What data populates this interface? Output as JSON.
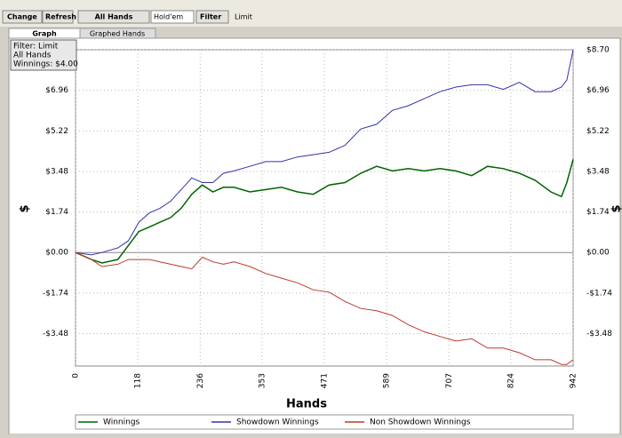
{
  "toolbar": {
    "buttons": [
      "Change",
      "Refresh",
      "All Hands"
    ],
    "game": "Hold'em",
    "filter": "Filter",
    "mode": "Limit"
  },
  "tabs": [
    "Graph",
    "Graphed Hands"
  ],
  "filter_box": [
    "Filter: Limit",
    "All Hands",
    "Winnings: $4.00"
  ],
  "chart_data": {
    "type": "line",
    "xlabel": "Hands",
    "ylabel": "$",
    "x": [
      0,
      30,
      50,
      80,
      100,
      120,
      140,
      160,
      180,
      200,
      220,
      240,
      260,
      280,
      300,
      330,
      360,
      390,
      420,
      450,
      480,
      510,
      540,
      570,
      600,
      630,
      660,
      690,
      720,
      750,
      780,
      810,
      840,
      870,
      900,
      920,
      930,
      942
    ],
    "series": [
      {
        "name": "Winnings",
        "color": "#006400",
        "values": [
          0,
          -0.3,
          -0.45,
          -0.3,
          0.3,
          0.9,
          1.1,
          1.3,
          1.5,
          1.9,
          2.5,
          2.9,
          2.6,
          2.8,
          2.8,
          2.6,
          2.7,
          2.8,
          2.6,
          2.5,
          2.9,
          3.0,
          3.4,
          3.7,
          3.5,
          3.6,
          3.5,
          3.6,
          3.5,
          3.3,
          3.7,
          3.6,
          3.4,
          3.1,
          2.6,
          2.4,
          3.0,
          4.0
        ]
      },
      {
        "name": "Showdown Winnings",
        "color": "#3333aa",
        "values": [
          0,
          -0.1,
          0,
          0.2,
          0.5,
          1.3,
          1.7,
          1.9,
          2.2,
          2.7,
          3.2,
          3.0,
          3.0,
          3.4,
          3.5,
          3.7,
          3.9,
          3.9,
          4.1,
          4.2,
          4.3,
          4.6,
          5.3,
          5.5,
          6.1,
          6.3,
          6.6,
          6.9,
          7.1,
          7.2,
          7.2,
          7.0,
          7.3,
          6.9,
          6.9,
          7.1,
          7.4,
          8.7
        ]
      },
      {
        "name": "Non Showdown Winnings",
        "color": "#c0392b",
        "values": [
          0,
          -0.3,
          -0.6,
          -0.5,
          -0.3,
          -0.3,
          -0.3,
          -0.4,
          -0.5,
          -0.6,
          -0.7,
          -0.2,
          -0.4,
          -0.5,
          -0.4,
          -0.6,
          -0.9,
          -1.1,
          -1.3,
          -1.6,
          -1.7,
          -2.1,
          -2.4,
          -2.5,
          -2.7,
          -3.1,
          -3.4,
          -3.6,
          -3.8,
          -3.7,
          -4.1,
          -4.1,
          -4.3,
          -4.6,
          -4.6,
          -4.8,
          -4.8,
          -4.6
        ]
      }
    ],
    "xlim": [
      0,
      942
    ],
    "xticks": [
      0,
      118,
      236,
      353,
      471,
      589,
      707,
      824,
      942
    ],
    "ylim": [
      -4.87,
      8.7
    ],
    "yticks": [
      {
        "value": 8.7,
        "label": "$8.70"
      },
      {
        "value": 6.96,
        "label": "$6.96"
      },
      {
        "value": 5.22,
        "label": "$5.22"
      },
      {
        "value": 3.48,
        "label": "$3.48"
      },
      {
        "value": 1.74,
        "label": "$1.74"
      },
      {
        "value": 0,
        "label": "$0.00"
      },
      {
        "value": -1.74,
        "label": "-$1.74"
      },
      {
        "value": -3.48,
        "label": "-$3.48"
      }
    ],
    "grid": true
  }
}
